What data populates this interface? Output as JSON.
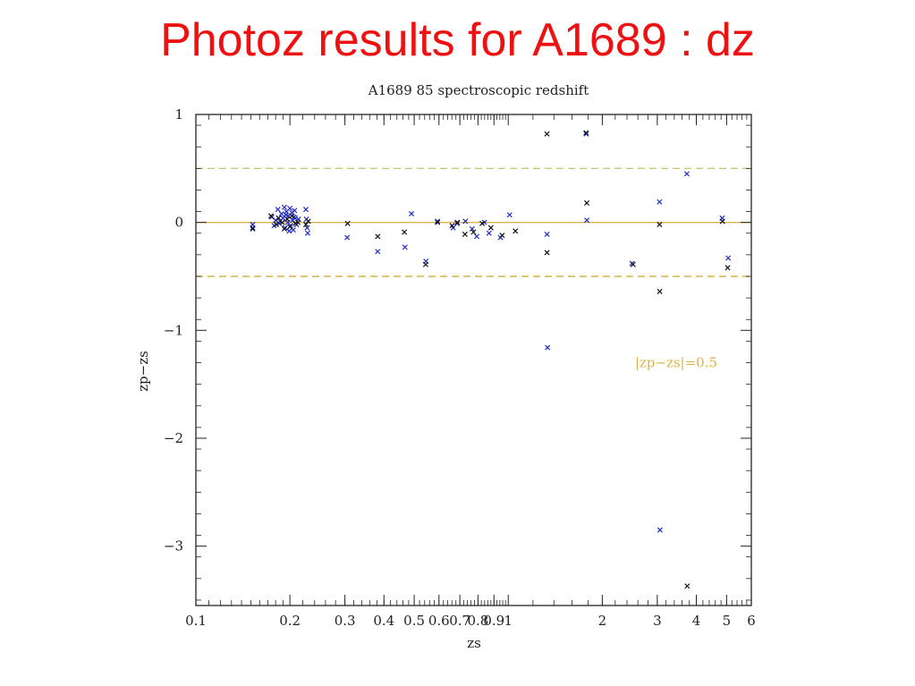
{
  "slide": {
    "title": "Photoz results for A1689 : dz"
  },
  "chart_data": {
    "type": "scatter",
    "title": "A1689 85 spectroscopic redshift",
    "xlabel": "zs",
    "ylabel": "zp−zs",
    "xscale": "log",
    "xlim": [
      0.1,
      6
    ],
    "ylim": [
      -3.55,
      1.0
    ],
    "xticks": [
      {
        "v": 0.1,
        "label": "0.1"
      },
      {
        "v": 0.2,
        "label": "0.2"
      },
      {
        "v": 0.3,
        "label": "0.3"
      },
      {
        "v": 0.4,
        "label": "0.4"
      },
      {
        "v": 0.5,
        "label": "0.5"
      },
      {
        "v": 0.6,
        "label": "0.6"
      },
      {
        "v": 0.7,
        "label": "0.7"
      },
      {
        "v": 0.8,
        "label": "0.8"
      },
      {
        "v": 0.9,
        "label": "0.9"
      },
      {
        "v": 1,
        "label": "1"
      },
      {
        "v": 2,
        "label": "2"
      },
      {
        "v": 3,
        "label": "3"
      },
      {
        "v": 4,
        "label": "4"
      },
      {
        "v": 5,
        "label": "5"
      },
      {
        "v": 6,
        "label": "6"
      }
    ],
    "yticks": [
      {
        "v": 1,
        "label": "1"
      },
      {
        "v": 0,
        "label": "0"
      },
      {
        "v": -1,
        "label": "−1"
      },
      {
        "v": -2,
        "label": "−2"
      },
      {
        "v": -3,
        "label": "−3"
      }
    ],
    "reference_lines": [
      {
        "y": 0,
        "style": "solid",
        "color": "#d9b44a"
      },
      {
        "y": 0.5,
        "style": "dashed",
        "color": "#c8c87a"
      },
      {
        "y": -0.5,
        "style": "dashed",
        "color": "#d9b44a"
      }
    ],
    "annotation": {
      "text": "|zp−zs|=0.5",
      "x": 3.1,
      "y": -1.3,
      "color": "#d9b44a"
    },
    "series": [
      {
        "color": "#1f2bc4",
        "points": [
          [
            0.152,
            -0.02
          ],
          [
            0.152,
            -0.05
          ],
          [
            0.175,
            0.05
          ],
          [
            0.18,
            0.02
          ],
          [
            0.183,
            0.12
          ],
          [
            0.185,
            -0.01
          ],
          [
            0.188,
            0.08
          ],
          [
            0.19,
            0.04
          ],
          [
            0.192,
            0.14
          ],
          [
            0.193,
            -0.05
          ],
          [
            0.195,
            0.1
          ],
          [
            0.197,
            0.0
          ],
          [
            0.198,
            0.06
          ],
          [
            0.2,
            0.13
          ],
          [
            0.201,
            -0.03
          ],
          [
            0.203,
            0.09
          ],
          [
            0.204,
            0.02
          ],
          [
            0.205,
            -0.07
          ],
          [
            0.207,
            0.11
          ],
          [
            0.208,
            0.04
          ],
          [
            0.21,
            -0.02
          ],
          [
            0.178,
            -0.03
          ],
          [
            0.186,
            0.01
          ],
          [
            0.194,
            0.07
          ],
          [
            0.199,
            -0.08
          ],
          [
            0.206,
            0.05
          ],
          [
            0.213,
            0.03
          ],
          [
            0.225,
            0.12
          ],
          [
            0.226,
            0.03
          ],
          [
            0.227,
            -0.05
          ],
          [
            0.228,
            -0.1
          ],
          [
            0.305,
            -0.14
          ],
          [
            0.382,
            -0.27
          ],
          [
            0.467,
            -0.23
          ],
          [
            0.49,
            0.08
          ],
          [
            0.545,
            -0.36
          ],
          [
            0.593,
            0.01
          ],
          [
            0.666,
            -0.05
          ],
          [
            0.686,
            -0.01
          ],
          [
            0.729,
            0.01
          ],
          [
            0.766,
            -0.06
          ],
          [
            0.793,
            -0.13
          ],
          [
            0.839,
            0.0
          ],
          [
            0.868,
            -0.1
          ],
          [
            0.944,
            -0.14
          ],
          [
            1.01,
            0.07
          ],
          [
            1.331,
            -0.11
          ],
          [
            1.336,
            -1.16
          ],
          [
            1.776,
            0.82
          ],
          [
            1.785,
            0.02
          ],
          [
            2.49,
            -0.38
          ],
          [
            3.05,
            0.19
          ],
          [
            3.06,
            -2.85
          ],
          [
            3.73,
            0.45
          ],
          [
            4.84,
            0.04
          ],
          [
            5.06,
            -0.33
          ]
        ]
      },
      {
        "color": "#111111",
        "points": [
          [
            0.152,
            -0.06
          ],
          [
            0.174,
            0.06
          ],
          [
            0.181,
            -0.02
          ],
          [
            0.184,
            0.04
          ],
          [
            0.189,
            0.0
          ],
          [
            0.192,
            -0.06
          ],
          [
            0.196,
            0.03
          ],
          [
            0.2,
            -0.04
          ],
          [
            0.203,
            0.06
          ],
          [
            0.208,
            -0.01
          ],
          [
            0.212,
            0.0
          ],
          [
            0.225,
            -0.02
          ],
          [
            0.229,
            0.01
          ],
          [
            0.306,
            -0.01
          ],
          [
            0.382,
            -0.13
          ],
          [
            0.465,
            -0.09
          ],
          [
            0.544,
            -0.39
          ],
          [
            0.594,
            0.0
          ],
          [
            0.661,
            -0.03
          ],
          [
            0.687,
            0.0
          ],
          [
            0.727,
            -0.11
          ],
          [
            0.774,
            -0.09
          ],
          [
            0.825,
            -0.01
          ],
          [
            0.88,
            -0.05
          ],
          [
            0.956,
            -0.12
          ],
          [
            1.054,
            -0.08
          ],
          [
            1.33,
            0.82
          ],
          [
            1.331,
            -0.28
          ],
          [
            1.775,
            0.83
          ],
          [
            1.784,
            0.18
          ],
          [
            2.51,
            -0.39
          ],
          [
            3.05,
            -0.02
          ],
          [
            3.055,
            -0.64
          ],
          [
            3.74,
            -3.37
          ],
          [
            4.85,
            0.01
          ],
          [
            5.04,
            -0.42
          ]
        ]
      }
    ]
  }
}
